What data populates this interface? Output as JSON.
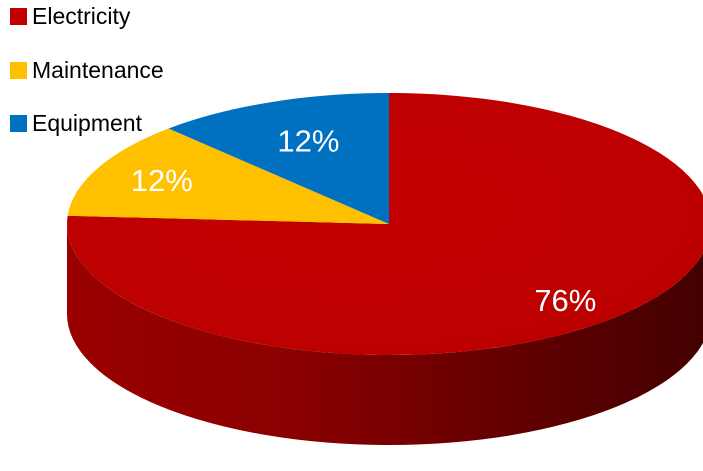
{
  "chart_data": {
    "type": "pie",
    "style": "3d",
    "title": "",
    "categories": [
      "Electricity",
      "Maintenance",
      "Equipment"
    ],
    "values": [
      76,
      12,
      12
    ],
    "data_labels": [
      "76%",
      "12%",
      "12%"
    ],
    "colors": [
      "#C00000",
      "#FFC000",
      "#0070C0"
    ],
    "legend": "top-left"
  }
}
